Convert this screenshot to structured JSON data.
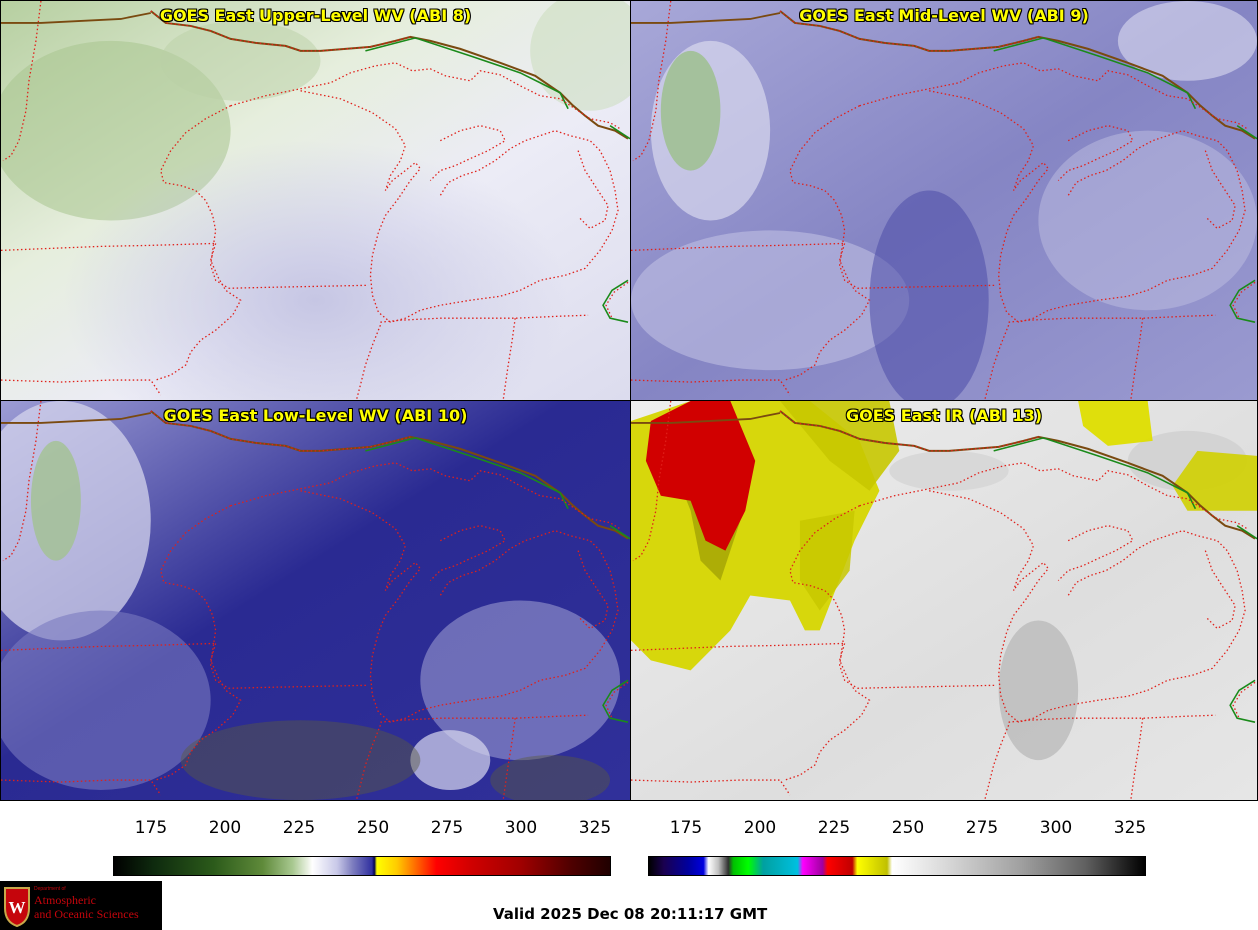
{
  "panels": [
    {
      "title": "GOES East Upper-Level WV (ABI 8)"
    },
    {
      "title": "GOES East Mid-Level WV (ABI 9)"
    },
    {
      "title": "GOES East Low-Level WV (ABI 10)"
    },
    {
      "title": "GOES East IR (ABI 13)"
    }
  ],
  "colorbars": {
    "wv": {
      "ticks": [
        "175",
        "200",
        "225",
        "250",
        "275",
        "300",
        "325"
      ]
    },
    "ir": {
      "ticks": [
        "175",
        "200",
        "225",
        "250",
        "275",
        "300",
        "325"
      ]
    }
  },
  "valid_time": "Valid 2025 Dec 08 20:11:17 GMT",
  "logo": {
    "dept": "Department of",
    "line1": "Atmospheric",
    "line2": "and Oceanic Sciences"
  },
  "colors": {
    "state_border": "#e0201a",
    "intl_border": "#1a8a1a",
    "coast_brown": "#7a4a10",
    "title": "#ffff00"
  }
}
